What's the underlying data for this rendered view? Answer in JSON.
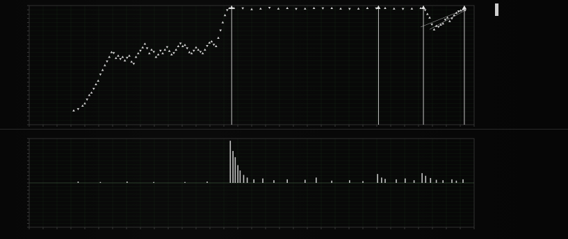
{
  "app": {
    "title": "",
    "colors": {
      "background": "#050505",
      "grid": "#1f3d1f",
      "axis": "#3a3a3a",
      "price_markers": "#e6e6e6",
      "event_lines": "#ffffff",
      "volume_bars": "#dcdcdc",
      "text": "#bfbfbf"
    }
  },
  "legend": {
    "header": "",
    "series_items": [
      {
        "label": "",
        "value": ""
      },
      {
        "label": "",
        "value": ""
      },
      {
        "label": "",
        "value": ""
      },
      {
        "label": "",
        "value": ""
      },
      {
        "label": "",
        "value": ""
      },
      {
        "label": "",
        "value": ""
      }
    ],
    "section_title": "",
    "stats": [
      {
        "label": "",
        "value": ""
      },
      {
        "label": "",
        "value": ""
      },
      {
        "label": "",
        "value": ""
      },
      {
        "label": "",
        "value": ""
      },
      {
        "label": "",
        "value": ""
      },
      {
        "label": "",
        "value": ""
      },
      {
        "label": "",
        "value": ""
      },
      {
        "label": "",
        "value": ""
      },
      {
        "label": "",
        "value": ""
      },
      {
        "label": "",
        "value": ""
      },
      {
        "label": "",
        "value": ""
      },
      {
        "label": "",
        "value": ""
      }
    ],
    "extra": [
      {
        "label": "",
        "value": ""
      },
      {
        "label": "",
        "value": ""
      },
      {
        "label": "",
        "value": ""
      },
      {
        "label": "",
        "value": ""
      },
      {
        "label": "",
        "value": ""
      },
      {
        "label": "",
        "value": ""
      },
      {
        "label": "",
        "value": ""
      }
    ]
  },
  "chart_data": [
    {
      "type": "scatter",
      "title": "",
      "xlabel": "",
      "ylabel": "",
      "grid": true,
      "legend_placement": "right",
      "xlim": [
        0,
        100
      ],
      "ylim": [
        0,
        100
      ],
      "x_tick_count": 32,
      "y_tick_count": 28,
      "series": [
        {
          "values": [
            [
              10,
              12
            ],
            [
              11,
              13
            ],
            [
              12,
              16
            ],
            [
              12.5,
              18
            ],
            [
              13,
              21
            ],
            [
              13.5,
              25
            ],
            [
              14,
              27
            ],
            [
              14.5,
              30
            ],
            [
              15,
              34
            ],
            [
              15.5,
              37
            ],
            [
              16,
              42
            ],
            [
              16.5,
              46
            ],
            [
              17,
              50
            ],
            [
              17.5,
              53
            ],
            [
              18,
              57
            ],
            [
              18.5,
              61
            ],
            [
              19,
              60
            ],
            [
              19.5,
              56
            ],
            [
              20,
              58
            ],
            [
              20.5,
              55
            ],
            [
              21,
              57
            ],
            [
              21.5,
              54
            ],
            [
              22,
              56
            ],
            [
              22.5,
              58
            ],
            [
              23,
              53
            ],
            [
              23.5,
              51
            ],
            [
              24,
              57
            ],
            [
              24.5,
              60
            ],
            [
              25,
              62
            ],
            [
              25.5,
              65
            ],
            [
              26,
              68
            ],
            [
              26.5,
              64
            ],
            [
              27,
              60
            ],
            [
              27.5,
              63
            ],
            [
              28,
              61
            ],
            [
              28.5,
              57
            ],
            [
              29,
              59
            ],
            [
              29.5,
              62
            ],
            [
              30,
              60
            ],
            [
              30.5,
              63
            ],
            [
              31,
              65
            ],
            [
              31.5,
              62
            ],
            [
              32,
              59
            ],
            [
              32.5,
              60
            ],
            [
              33,
              63
            ],
            [
              33.5,
              66
            ],
            [
              34,
              68
            ],
            [
              34.5,
              66
            ],
            [
              35,
              67
            ],
            [
              35.5,
              64
            ],
            [
              36,
              61
            ],
            [
              36.5,
              60
            ],
            [
              37,
              62
            ],
            [
              37.5,
              65
            ],
            [
              38,
              63
            ],
            [
              38.5,
              61
            ],
            [
              39,
              60
            ],
            [
              39.5,
              63
            ],
            [
              40,
              66
            ],
            [
              40.5,
              69
            ],
            [
              41,
              70
            ],
            [
              41.5,
              67
            ],
            [
              42,
              66
            ],
            [
              42.5,
              73
            ],
            [
              43,
              79
            ],
            [
              43.5,
              86
            ],
            [
              44,
              92
            ],
            [
              44.5,
              96
            ],
            [
              45,
              98
            ],
            [
              46,
              98
            ],
            [
              48,
              97.5
            ],
            [
              50,
              97
            ],
            [
              52,
              97.5
            ],
            [
              54,
              98
            ],
            [
              56,
              97.5
            ],
            [
              58,
              98
            ],
            [
              60,
              97
            ],
            [
              62,
              97.5
            ],
            [
              64,
              98
            ],
            [
              66,
              97.5
            ],
            [
              68,
              98
            ],
            [
              70,
              97.5
            ],
            [
              72,
              97
            ],
            [
              74,
              97.5
            ],
            [
              76,
              98
            ],
            [
              78,
              97.5
            ],
            [
              80,
              98
            ],
            [
              82,
              97.5
            ],
            [
              84,
              97
            ],
            [
              86,
              97.5
            ],
            [
              88,
              98
            ],
            [
              89,
              96
            ],
            [
              89.5,
              93
            ],
            [
              90,
              90
            ],
            [
              90.5,
              84
            ],
            [
              91,
              80
            ],
            [
              91.5,
              83
            ],
            [
              92,
              82
            ],
            [
              92.5,
              84
            ],
            [
              93,
              85
            ],
            [
              93.5,
              88
            ],
            [
              94,
              90
            ],
            [
              94.5,
              87
            ],
            [
              95,
              89
            ],
            [
              95.5,
              92
            ],
            [
              96,
              94
            ],
            [
              96.5,
              95
            ],
            [
              97,
              96
            ],
            [
              97.5,
              97
            ],
            [
              98,
              96
            ]
          ]
        }
      ],
      "event_markers_x": [
        45.5,
        78.5,
        88.6,
        97.8
      ],
      "trend_lines": [
        {
          "x": [
            90,
            98
          ],
          "y": [
            80,
            96
          ]
        },
        {
          "x": [
            88,
            98
          ],
          "y": [
            82,
            97
          ]
        }
      ]
    },
    {
      "type": "bar",
      "title": "",
      "xlabel": "",
      "ylabel": "",
      "grid": true,
      "xlim": [
        0,
        100
      ],
      "ylim": [
        -100,
        100
      ],
      "baseline_y": 0,
      "x_tick_count": 32,
      "y_tick_count": 24,
      "values": [
        [
          45.2,
          95
        ],
        [
          45.8,
          72
        ],
        [
          46.3,
          58
        ],
        [
          46.9,
          40
        ],
        [
          47.4,
          28
        ],
        [
          48.2,
          18
        ],
        [
          49.0,
          12
        ],
        [
          50.5,
          8
        ],
        [
          52.5,
          10
        ],
        [
          55.0,
          6
        ],
        [
          58.0,
          8
        ],
        [
          62.0,
          7
        ],
        [
          64.5,
          12
        ],
        [
          68.0,
          5
        ],
        [
          72.0,
          6
        ],
        [
          75.0,
          4
        ],
        [
          78.3,
          20
        ],
        [
          79.2,
          12
        ],
        [
          80.0,
          9
        ],
        [
          82.5,
          8
        ],
        [
          84.5,
          10
        ],
        [
          86.5,
          6
        ],
        [
          88.3,
          22
        ],
        [
          89.1,
          16
        ],
        [
          90.2,
          11
        ],
        [
          91.5,
          7
        ],
        [
          93.0,
          6
        ],
        [
          95.0,
          8
        ],
        [
          96.0,
          5
        ],
        [
          97.5,
          8
        ],
        [
          11.0,
          3
        ],
        [
          16.0,
          2
        ],
        [
          22.0,
          3
        ],
        [
          28.0,
          2
        ],
        [
          35.0,
          2
        ],
        [
          40.0,
          3
        ]
      ]
    }
  ]
}
